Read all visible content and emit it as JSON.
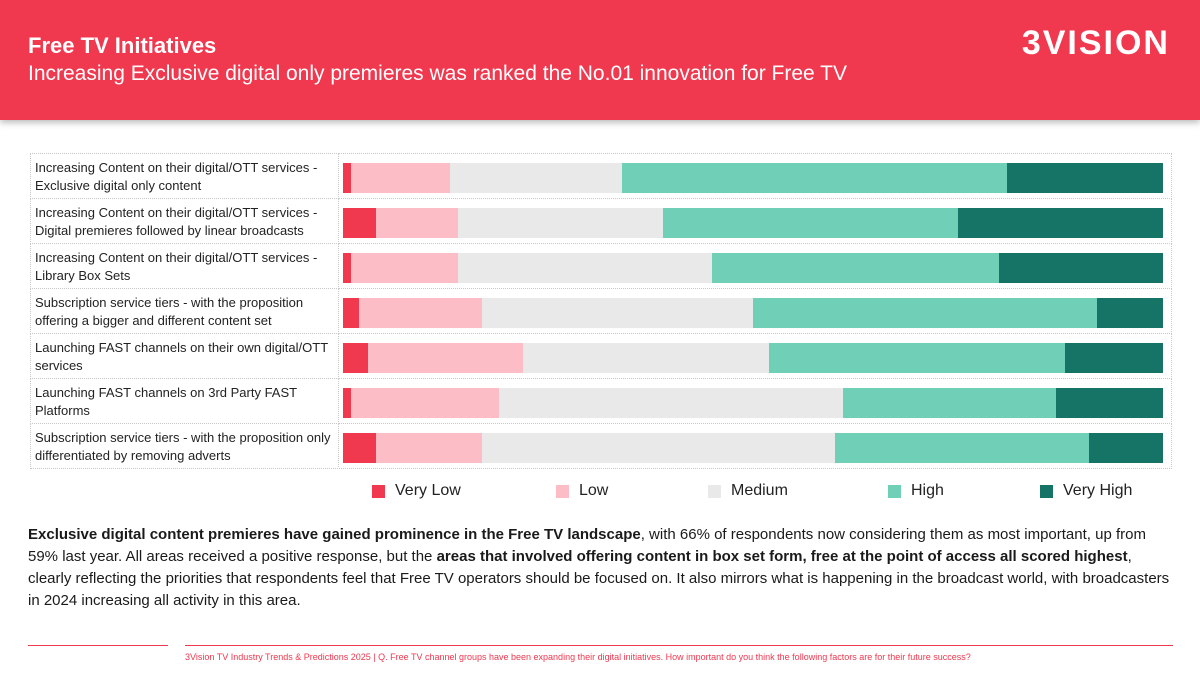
{
  "header": {
    "title": "Free TV Initiatives",
    "subtitle": "Increasing Exclusive digital only premieres was ranked the No.01 innovation for Free TV",
    "logo": "3VISION"
  },
  "colors": {
    "very_low": "#f0384f",
    "low": "#fdbdc7",
    "medium": "#e9e9e9",
    "high": "#6fcfb7",
    "very_high": "#167466",
    "header_bg": "#f0384f"
  },
  "chart_data": {
    "type": "bar",
    "orientation": "horizontal",
    "stacked": true,
    "percent_stacked": true,
    "categories": [
      "Increasing Content on their digital/OTT services - Exclusive digital only content",
      "Increasing Content on their digital/OTT services - Digital premieres followed by linear broadcasts",
      "Increasing Content on their digital/OTT services - Library Box Sets",
      "Subscription service tiers - with the proposition offering a bigger and different content set",
      "Launching FAST channels on their own digital/OTT services",
      "Launching FAST channels on 3rd Party FAST Platforms",
      "Subscription service tiers - with the proposition only differentiated by removing adverts"
    ],
    "series": [
      {
        "name": "Very Low",
        "values": [
          1,
          4,
          1,
          2,
          3,
          1,
          4
        ]
      },
      {
        "name": "Low",
        "values": [
          12,
          10,
          13,
          15,
          19,
          18,
          13
        ]
      },
      {
        "name": "Medium",
        "values": [
          21,
          25,
          31,
          33,
          30,
          42,
          43
        ]
      },
      {
        "name": "High",
        "values": [
          47,
          36,
          35,
          42,
          36,
          26,
          31
        ]
      },
      {
        "name": "Very High",
        "values": [
          19,
          25,
          20,
          8,
          12,
          13,
          9
        ]
      }
    ],
    "xlim": [
      0,
      100
    ],
    "legend_position": "bottom"
  },
  "body": {
    "p1_bold": "Exclusive digital content premieres have gained prominence in the Free TV landscape",
    "p2": ", with 66% of respondents now considering them as most important, up from 59% last year. All areas received a positive response, but the ",
    "p3_bold": "areas that involved offering content in box set form, free at the point of access all scored highest",
    "p4": ", clearly reflecting the priorities that respondents feel that Free TV operators should be focused on. It also mirrors what is happening in the broadcast world, with broadcasters in 2024 increasing all activity in this area."
  },
  "footer": "3Vision TV Industry Trends & Predictions 2025 | Q. Free TV channel groups have been expanding their digital initiatives. How important do you think the following factors are for their future success?"
}
